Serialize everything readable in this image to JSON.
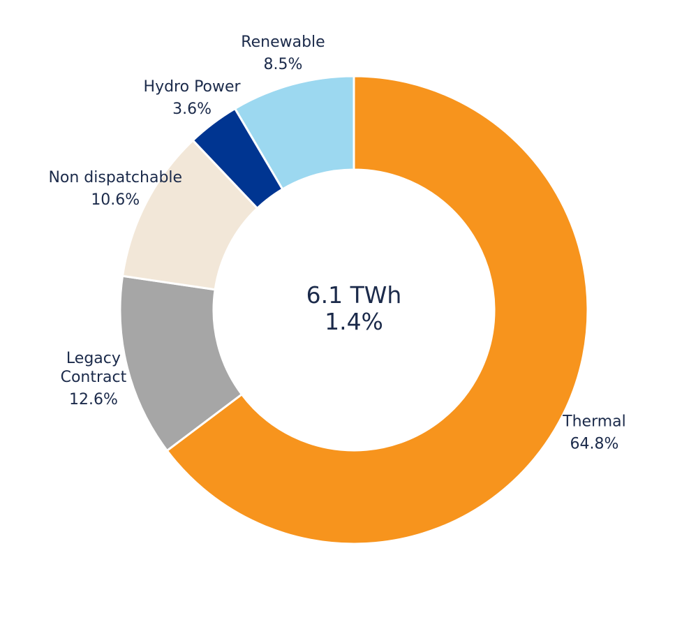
{
  "chart_data": {
    "type": "pie",
    "donut": true,
    "center_label": {
      "line1": "6.1 TWh",
      "line2": "1.4%"
    },
    "slices": [
      {
        "name": "Thermal",
        "label_lines": [
          "Thermal"
        ],
        "value": 64.8,
        "value_label": "64.8%",
        "color": "#f7941d"
      },
      {
        "name": "Legacy Contract",
        "label_lines": [
          "Legacy",
          "Contract"
        ],
        "value": 12.6,
        "value_label": "12.6%",
        "color": "#a6a6a6"
      },
      {
        "name": "Non dispatchable",
        "label_lines": [
          "Non dispatchable"
        ],
        "value": 10.6,
        "value_label": "10.6%",
        "color": "#f2e7d8"
      },
      {
        "name": "Hydro Power",
        "label_lines": [
          "Hydro Power"
        ],
        "value": 3.6,
        "value_label": "3.6%",
        "color": "#003591"
      },
      {
        "name": "Renewable",
        "label_lines": [
          "Renewable"
        ],
        "value": 8.5,
        "value_label": "8.5%",
        "color": "#9cd8f0"
      }
    ]
  }
}
